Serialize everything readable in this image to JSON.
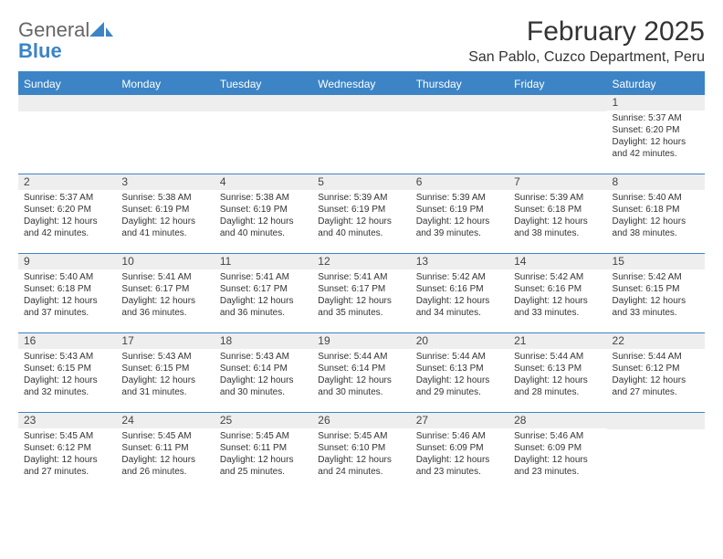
{
  "logo": {
    "text1": "General",
    "text2": "Blue"
  },
  "title": "February 2025",
  "location": "San Pablo, Cuzco Department, Peru",
  "colors": {
    "accent": "#3c84c6",
    "header_text": "#ffffff",
    "daynum_bg": "#eeeeee",
    "text": "#333333",
    "logo_gray": "#666666"
  },
  "weekdays": [
    "Sunday",
    "Monday",
    "Tuesday",
    "Wednesday",
    "Thursday",
    "Friday",
    "Saturday"
  ],
  "weeks": [
    [
      {
        "n": "",
        "sr": "",
        "ss": "",
        "dl": ""
      },
      {
        "n": "",
        "sr": "",
        "ss": "",
        "dl": ""
      },
      {
        "n": "",
        "sr": "",
        "ss": "",
        "dl": ""
      },
      {
        "n": "",
        "sr": "",
        "ss": "",
        "dl": ""
      },
      {
        "n": "",
        "sr": "",
        "ss": "",
        "dl": ""
      },
      {
        "n": "",
        "sr": "",
        "ss": "",
        "dl": ""
      },
      {
        "n": "1",
        "sr": "Sunrise: 5:37 AM",
        "ss": "Sunset: 6:20 PM",
        "dl": "Daylight: 12 hours and 42 minutes."
      }
    ],
    [
      {
        "n": "2",
        "sr": "Sunrise: 5:37 AM",
        "ss": "Sunset: 6:20 PM",
        "dl": "Daylight: 12 hours and 42 minutes."
      },
      {
        "n": "3",
        "sr": "Sunrise: 5:38 AM",
        "ss": "Sunset: 6:19 PM",
        "dl": "Daylight: 12 hours and 41 minutes."
      },
      {
        "n": "4",
        "sr": "Sunrise: 5:38 AM",
        "ss": "Sunset: 6:19 PM",
        "dl": "Daylight: 12 hours and 40 minutes."
      },
      {
        "n": "5",
        "sr": "Sunrise: 5:39 AM",
        "ss": "Sunset: 6:19 PM",
        "dl": "Daylight: 12 hours and 40 minutes."
      },
      {
        "n": "6",
        "sr": "Sunrise: 5:39 AM",
        "ss": "Sunset: 6:19 PM",
        "dl": "Daylight: 12 hours and 39 minutes."
      },
      {
        "n": "7",
        "sr": "Sunrise: 5:39 AM",
        "ss": "Sunset: 6:18 PM",
        "dl": "Daylight: 12 hours and 38 minutes."
      },
      {
        "n": "8",
        "sr": "Sunrise: 5:40 AM",
        "ss": "Sunset: 6:18 PM",
        "dl": "Daylight: 12 hours and 38 minutes."
      }
    ],
    [
      {
        "n": "9",
        "sr": "Sunrise: 5:40 AM",
        "ss": "Sunset: 6:18 PM",
        "dl": "Daylight: 12 hours and 37 minutes."
      },
      {
        "n": "10",
        "sr": "Sunrise: 5:41 AM",
        "ss": "Sunset: 6:17 PM",
        "dl": "Daylight: 12 hours and 36 minutes."
      },
      {
        "n": "11",
        "sr": "Sunrise: 5:41 AM",
        "ss": "Sunset: 6:17 PM",
        "dl": "Daylight: 12 hours and 36 minutes."
      },
      {
        "n": "12",
        "sr": "Sunrise: 5:41 AM",
        "ss": "Sunset: 6:17 PM",
        "dl": "Daylight: 12 hours and 35 minutes."
      },
      {
        "n": "13",
        "sr": "Sunrise: 5:42 AM",
        "ss": "Sunset: 6:16 PM",
        "dl": "Daylight: 12 hours and 34 minutes."
      },
      {
        "n": "14",
        "sr": "Sunrise: 5:42 AM",
        "ss": "Sunset: 6:16 PM",
        "dl": "Daylight: 12 hours and 33 minutes."
      },
      {
        "n": "15",
        "sr": "Sunrise: 5:42 AM",
        "ss": "Sunset: 6:15 PM",
        "dl": "Daylight: 12 hours and 33 minutes."
      }
    ],
    [
      {
        "n": "16",
        "sr": "Sunrise: 5:43 AM",
        "ss": "Sunset: 6:15 PM",
        "dl": "Daylight: 12 hours and 32 minutes."
      },
      {
        "n": "17",
        "sr": "Sunrise: 5:43 AM",
        "ss": "Sunset: 6:15 PM",
        "dl": "Daylight: 12 hours and 31 minutes."
      },
      {
        "n": "18",
        "sr": "Sunrise: 5:43 AM",
        "ss": "Sunset: 6:14 PM",
        "dl": "Daylight: 12 hours and 30 minutes."
      },
      {
        "n": "19",
        "sr": "Sunrise: 5:44 AM",
        "ss": "Sunset: 6:14 PM",
        "dl": "Daylight: 12 hours and 30 minutes."
      },
      {
        "n": "20",
        "sr": "Sunrise: 5:44 AM",
        "ss": "Sunset: 6:13 PM",
        "dl": "Daylight: 12 hours and 29 minutes."
      },
      {
        "n": "21",
        "sr": "Sunrise: 5:44 AM",
        "ss": "Sunset: 6:13 PM",
        "dl": "Daylight: 12 hours and 28 minutes."
      },
      {
        "n": "22",
        "sr": "Sunrise: 5:44 AM",
        "ss": "Sunset: 6:12 PM",
        "dl": "Daylight: 12 hours and 27 minutes."
      }
    ],
    [
      {
        "n": "23",
        "sr": "Sunrise: 5:45 AM",
        "ss": "Sunset: 6:12 PM",
        "dl": "Daylight: 12 hours and 27 minutes."
      },
      {
        "n": "24",
        "sr": "Sunrise: 5:45 AM",
        "ss": "Sunset: 6:11 PM",
        "dl": "Daylight: 12 hours and 26 minutes."
      },
      {
        "n": "25",
        "sr": "Sunrise: 5:45 AM",
        "ss": "Sunset: 6:11 PM",
        "dl": "Daylight: 12 hours and 25 minutes."
      },
      {
        "n": "26",
        "sr": "Sunrise: 5:45 AM",
        "ss": "Sunset: 6:10 PM",
        "dl": "Daylight: 12 hours and 24 minutes."
      },
      {
        "n": "27",
        "sr": "Sunrise: 5:46 AM",
        "ss": "Sunset: 6:09 PM",
        "dl": "Daylight: 12 hours and 23 minutes."
      },
      {
        "n": "28",
        "sr": "Sunrise: 5:46 AM",
        "ss": "Sunset: 6:09 PM",
        "dl": "Daylight: 12 hours and 23 minutes."
      },
      {
        "n": "",
        "sr": "",
        "ss": "",
        "dl": ""
      }
    ]
  ]
}
